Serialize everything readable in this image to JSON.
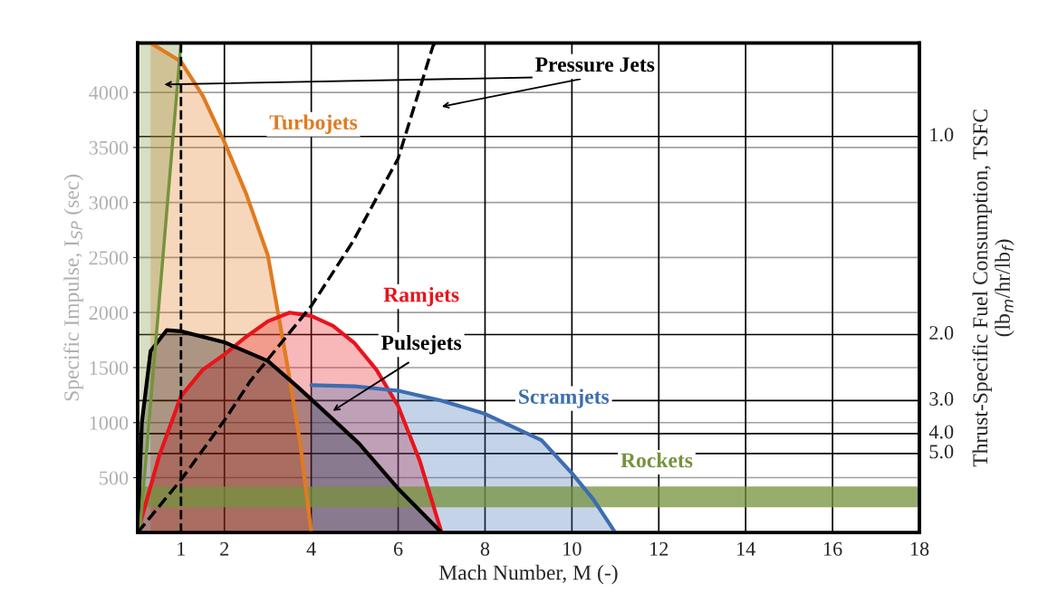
{
  "chart_data": {
    "type": "area",
    "xlabel": "Mach Number, M (-)",
    "ylabel": "Specific Impulse, I$_{SP}$ (sec)",
    "y2label": "Thrust-Specific Fuel Consumption, TSFC\n(lb$_{m}$/hr/lb$_{f}$)",
    "xlim": [
      0,
      18
    ],
    "xticks": [
      1,
      2,
      4,
      6,
      8,
      10,
      12,
      14,
      16,
      18
    ],
    "ylim": [
      0,
      4450
    ],
    "yticks": [
      500,
      1000,
      1500,
      2000,
      2500,
      3000,
      3500,
      4000
    ],
    "grid": true,
    "series": [
      {
        "color": "#e07b20",
        "x": [
          0.3,
          1,
          1.5,
          2,
          2.5,
          3,
          3.45,
          3.75,
          4
        ],
        "values": [
          4450,
          4280,
          3970,
          3550,
          3080,
          2520,
          1520,
          800,
          0
        ]
      },
      {
        "color": "#e8141c",
        "x": [
          0,
          0.5,
          1,
          1.5,
          2,
          2.5,
          3,
          3.5,
          4,
          4.5,
          5,
          5.5,
          6,
          6.5,
          7
        ],
        "values": [
          0,
          700,
          1240,
          1480,
          1620,
          1780,
          1920,
          2000,
          1970,
          1880,
          1720,
          1480,
          1150,
          650,
          0
        ]
      },
      {
        "color": "#000000",
        "x": [
          0,
          0.1,
          0.3,
          0.67,
          1,
          2,
          3,
          3.7,
          4.5,
          5.1,
          6,
          7
        ],
        "values": [
          0,
          1000,
          1650,
          1840,
          1830,
          1730,
          1560,
          1320,
          1030,
          810,
          400,
          0
        ]
      },
      {
        "color": "#3d6db0",
        "x": [
          4,
          5,
          6,
          7,
          8,
          9.3,
          10,
          10.5,
          11
        ],
        "values": [
          1340,
          1330,
          1290,
          1200,
          1080,
          840,
          540,
          300,
          0
        ]
      },
      {
        "type": "line",
        "color": "#76923c",
        "x": [
          0.05,
          0.5,
          1
        ],
        "values": [
          0,
          2110,
          4450
        ],
        "lower": [
          0,
          2110,
          4450
        ],
        "upper": [
          4450,
          4450,
          4450
        ]
      },
      {
        "type": "line",
        "color": "#000000",
        "line_style": "dashed",
        "x": [
          0,
          1,
          2,
          2.6,
          4,
          4.95,
          6,
          6.8,
          6.85
        ],
        "values": [
          0,
          480,
          1020,
          1380,
          2060,
          2640,
          3400,
          4420,
          4450
        ]
      }
    ],
    "ref_lines": [
      {
        "axis": "x",
        "value": 1,
        "color": "#000000",
        "line_style": "dashed"
      },
      {
        "axis": "y",
        "value": 3600,
        "color": "#000000"
      },
      {
        "axis": "y",
        "value": 1800,
        "color": "#000000"
      },
      {
        "axis": "y",
        "value": 1200,
        "color": "#000000"
      },
      {
        "axis": "y",
        "value": 900,
        "color": "#000000"
      },
      {
        "axis": "y",
        "value": 720,
        "color": "#000000"
      }
    ],
    "bands": [
      {
        "axis": "y",
        "from": 230,
        "to": 420,
        "color": "#76923c"
      }
    ],
    "annotations": [
      "Turbojets",
      "Ramjets",
      "Pulsejets",
      "Scramjets",
      "Rockets",
      "Pressure Jets",
      "1.0",
      "2.0",
      "3.0",
      "4.0",
      "5.0"
    ]
  }
}
